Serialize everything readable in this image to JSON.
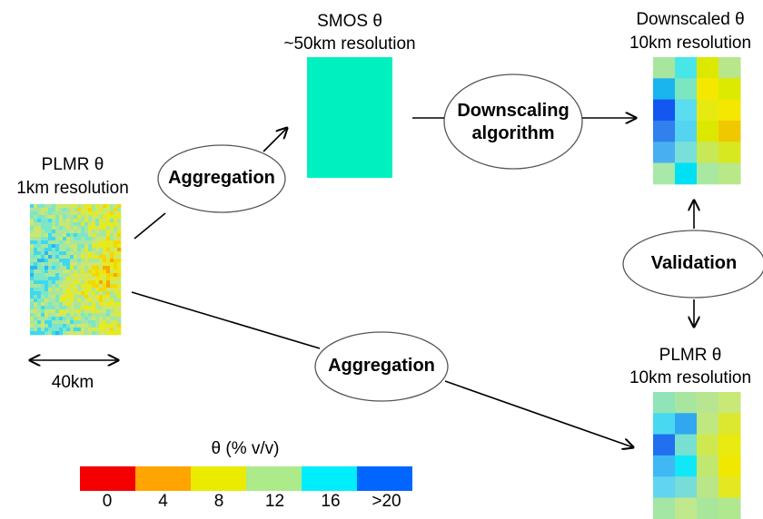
{
  "plmr_1km": {
    "title": "PLMR θ",
    "subtitle": "1km resolution"
  },
  "smos": {
    "title": "SMOS θ",
    "subtitle": "~50km resolution",
    "color": "#00f0c0"
  },
  "downscaled": {
    "title": "Downscaled θ",
    "subtitle": "10km resolution"
  },
  "plmr_10km": {
    "title": "PLMR θ",
    "subtitle": "10km resolution"
  },
  "nodes": {
    "aggregation_top": "Aggregation",
    "aggregation_bottom": "Aggregation",
    "downscaling_line1": "Downscaling",
    "downscaling_line2": "algorithm",
    "validation": "Validation"
  },
  "scale_bar": {
    "label": "40km"
  },
  "legend": {
    "title": "θ (% v/v)",
    "ticks": [
      "0",
      "4",
      "8",
      "12",
      "16",
      ">20"
    ],
    "colors": [
      "#f40000",
      "#ffa400",
      "#eaeb00",
      "#acea8a",
      "#00eefc",
      "#0066ff"
    ]
  },
  "grid_colors": {
    "downscaled": [
      [
        "#a8e69e",
        "#48e6e8",
        "#dde800",
        "#b8e68a"
      ],
      [
        "#1ab4ee",
        "#7ce6c0",
        "#f4e800",
        "#dce900"
      ],
      [
        "#1456f0",
        "#5cdcf0",
        "#e6ea10",
        "#f4e800"
      ],
      [
        "#3080ee",
        "#54d4f0",
        "#dce800",
        "#f0c800"
      ],
      [
        "#48b0f0",
        "#78e0d8",
        "#c8e858",
        "#d8e820"
      ],
      [
        "#a8e8a8",
        "#00e0f4",
        "#a8e8a0",
        "#b8e888"
      ]
    ],
    "plmr_10km": [
      [
        "#90e4b8",
        "#a8e6a0",
        "#b8e690",
        "#c8e878"
      ],
      [
        "#48d8f0",
        "#30a8f0",
        "#c0e880",
        "#dce830"
      ],
      [
        "#2070f0",
        "#78e0d0",
        "#d0e850",
        "#e8ea10"
      ],
      [
        "#40b8f4",
        "#10e8f8",
        "#c0e870",
        "#f0e800"
      ],
      [
        "#60d4f0",
        "#78dcd8",
        "#b8e688",
        "#e4e820"
      ],
      [
        "#a4e6a4",
        "#c0e88c",
        "#a8e69c",
        "#b0e890"
      ]
    ]
  }
}
